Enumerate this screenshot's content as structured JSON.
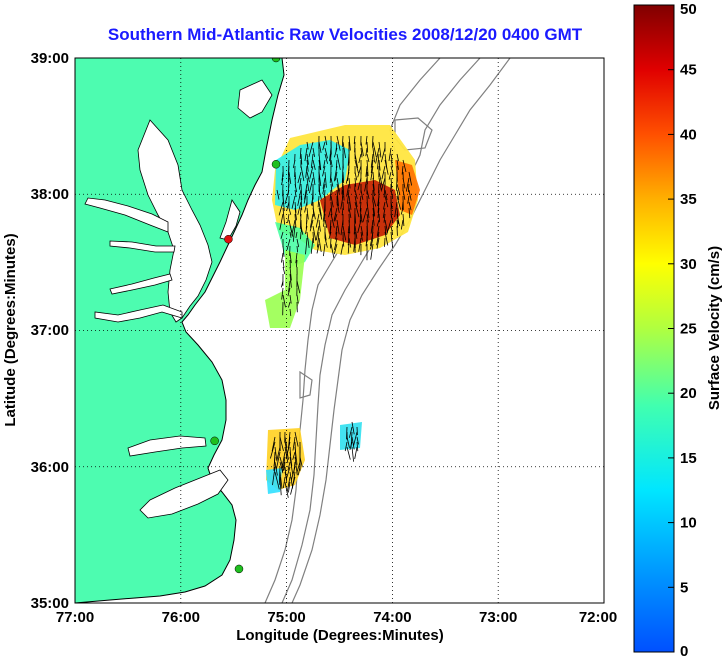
{
  "title": "Southern Mid-Atlantic Raw Velocities 2008/12/20 0400 GMT",
  "x_axis": {
    "label": "Longitude (Degrees:Minutes)",
    "ticks": [
      "77:00",
      "76:00",
      "75:00",
      "74:00",
      "73:00",
      "72:00"
    ]
  },
  "y_axis": {
    "label": "Latitude (Degrees:Minutes)",
    "ticks": [
      "39:00",
      "38:00",
      "37:00",
      "36:00",
      "35:00"
    ]
  },
  "colorbar": {
    "label": "Surface Velocity (cm/s)",
    "ticks": [
      "50",
      "45",
      "40",
      "35",
      "30",
      "25",
      "20",
      "15",
      "10",
      "5",
      "0"
    ],
    "range": [
      0,
      50
    ]
  },
  "map": {
    "lon_range": [
      -77,
      -72
    ],
    "lat_range": [
      35,
      39
    ],
    "land_color": "#4dfcb0",
    "grid": true,
    "stations": [
      {
        "lon": -75.1,
        "lat": 39.0,
        "color": "#1fbf1f"
      },
      {
        "lon": -75.1,
        "lat": 38.22,
        "color": "#1fbf1f"
      },
      {
        "lon": -75.55,
        "lat": 37.67,
        "color": "#e01010"
      },
      {
        "lon": -75.68,
        "lat": 36.19,
        "color": "#1fbf1f"
      },
      {
        "lon": -75.45,
        "lat": 35.25,
        "color": "#1fbf1f"
      }
    ]
  }
}
